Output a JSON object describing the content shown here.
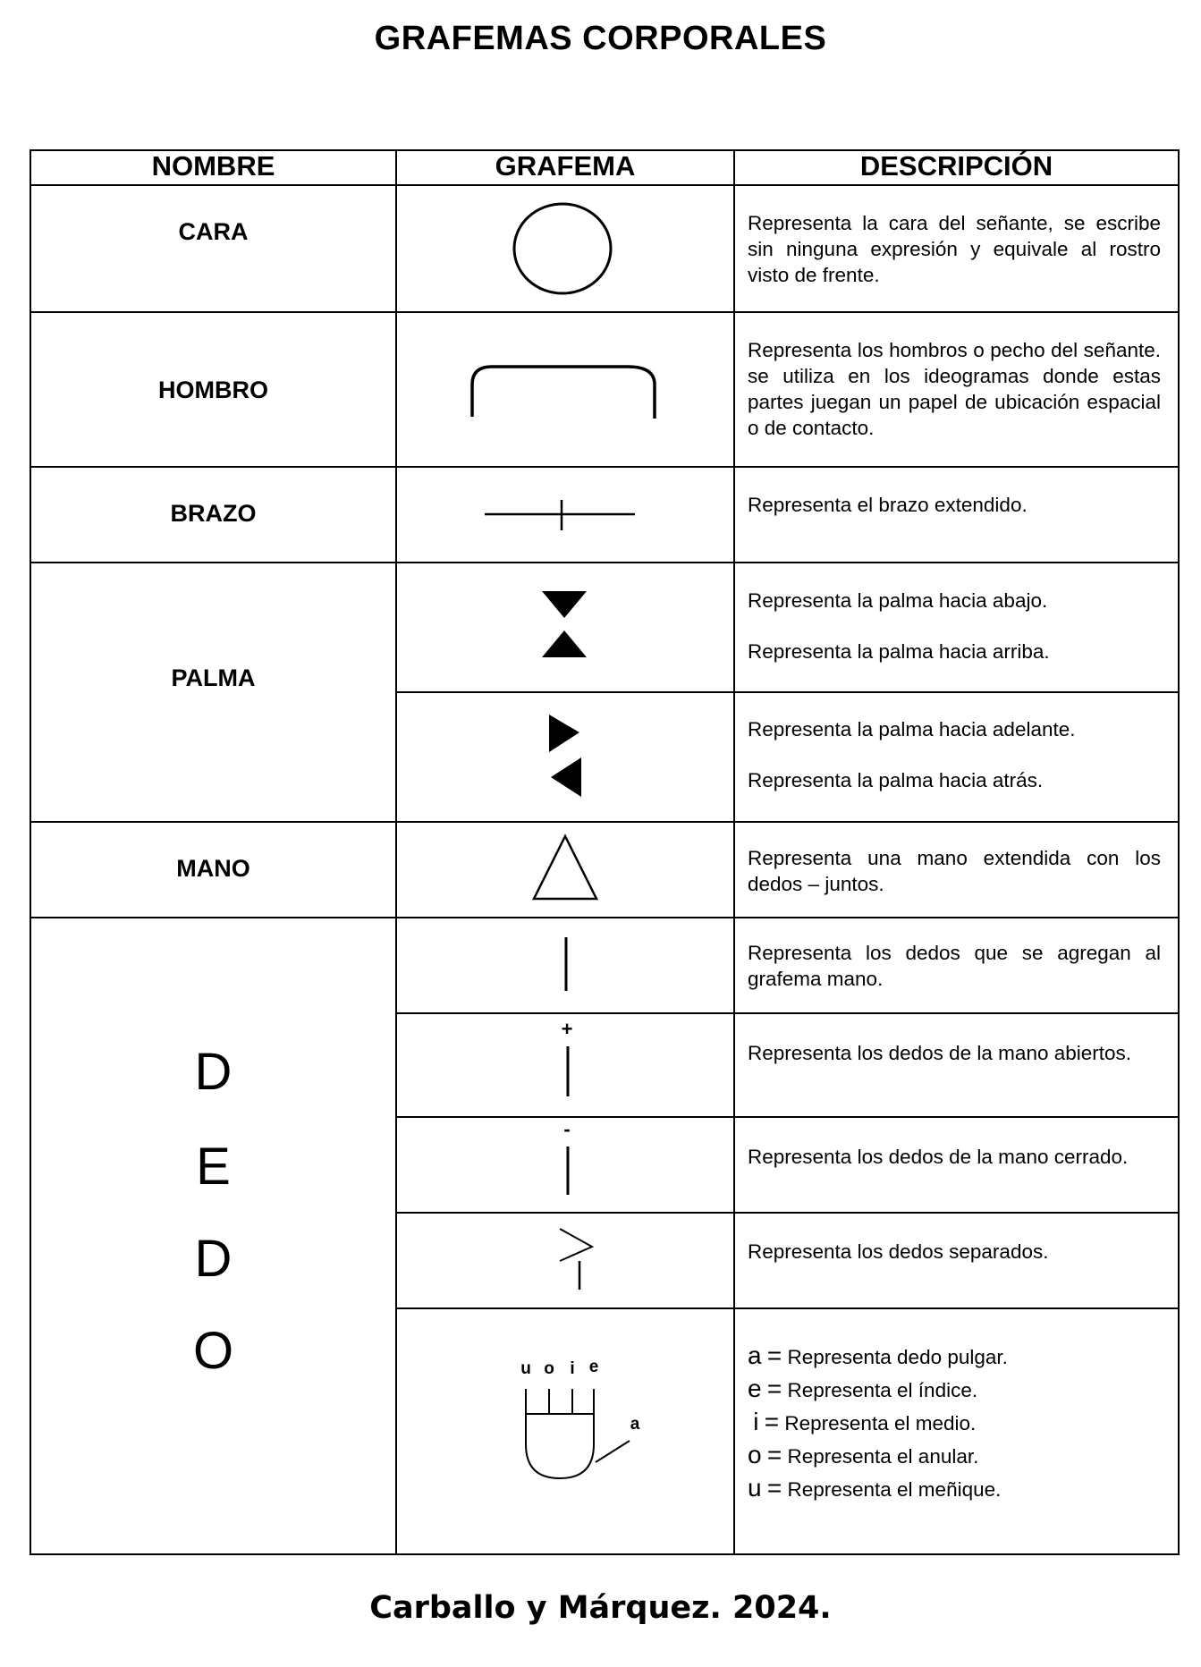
{
  "title": "GRAFEMAS CORPORALES",
  "headers": {
    "nombre": "NOMBRE",
    "grafema": "GRAFEMA",
    "descripcion": "DESCRIPCIÓN"
  },
  "rows": {
    "cara": {
      "name": "CARA",
      "desc": "Representa la cara del señante, se escribe sin ninguna expresión y equivale al rostro visto de frente."
    },
    "hombro": {
      "name": "HOMBRO",
      "desc": "Representa los hombros o pecho del señante. se utiliza en los ideogramas donde estas partes juegan un papel de ubicación espacial o de contacto."
    },
    "brazo": {
      "name": "BRAZO",
      "desc": "Representa el brazo extendido."
    },
    "palma": {
      "name": "PALMA",
      "desc_abajo": "Representa la palma hacia abajo.",
      "desc_arriba": "Representa la palma hacia arriba.",
      "desc_adelante": "Representa la palma hacia adelante.",
      "desc_atras": "Representa la palma hacia atrás."
    },
    "mano": {
      "name": "MANO",
      "desc": "Representa una mano extendida con los dedos – juntos."
    },
    "dedo": {
      "letters": [
        "D",
        "E",
        "D",
        "O"
      ],
      "desc_agregan": "Representa los dedos que se agregan al grafema mano.",
      "desc_abiertos": "Representa los dedos de la mano abiertos.",
      "desc_cerrado": "Representa los dedos de la mano cerrado.",
      "desc_separados": "Representa los dedos separados.",
      "plus_sign": "+",
      "minus_sign": "-",
      "finger_labels": {
        "u": "u",
        "o": "o",
        "i": "i",
        "e": "e",
        "a": "a"
      },
      "legend": [
        {
          "key": "a",
          "text": "Representa dedo pulgar."
        },
        {
          "key": "e",
          "text": "Representa el índice."
        },
        {
          "key": "i",
          "text": "Representa el medio."
        },
        {
          "key": "o",
          "text": "Representa el anular."
        },
        {
          "key": "u",
          "text": "Representa el meñique."
        }
      ],
      "equals": "="
    }
  },
  "footer": "Carballo y Márquez. 2024."
}
